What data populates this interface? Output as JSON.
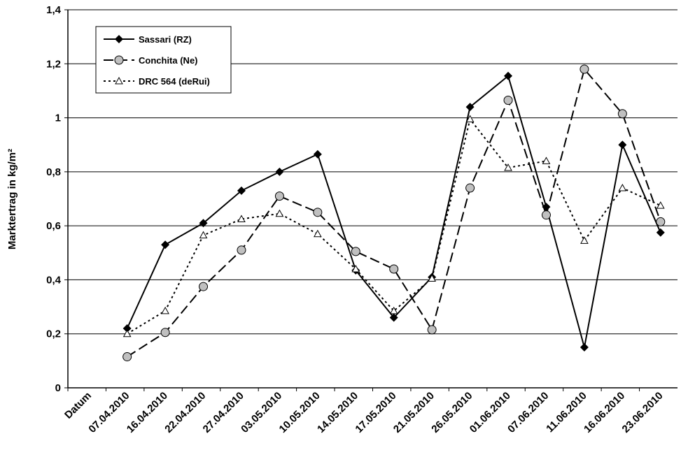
{
  "chart_data": {
    "type": "line",
    "y_label": "Marktertrag in kg/m²",
    "categories": [
      "Datum",
      "07.04.2010",
      "16.04.2010",
      "22.04.2010",
      "27.04.2010",
      "03.05.2010",
      "10.05.2010",
      "14.05.2010",
      "17.05.2010",
      "21.05.2010",
      "26.05.2010",
      "01.06.2010",
      "07.06.2010",
      "11.06.2010",
      "16.06.2010",
      "23.06.2010"
    ],
    "series": [
      {
        "name": "Sassari (RZ)",
        "color": "#000000",
        "dash": "solid",
        "marker": "diamond",
        "values": [
          null,
          0.22,
          0.53,
          0.61,
          0.73,
          0.8,
          0.865,
          0.435,
          0.26,
          0.41,
          1.04,
          1.155,
          0.67,
          0.15,
          0.9,
          0.575
        ]
      },
      {
        "name": "Conchita (Ne)",
        "color": "#000000",
        "dash": "dashed",
        "marker": "circle",
        "values": [
          null,
          0.115,
          0.205,
          0.375,
          0.51,
          0.71,
          0.65,
          0.505,
          0.44,
          0.215,
          0.74,
          1.065,
          0.64,
          1.18,
          1.015,
          0.615
        ]
      },
      {
        "name": "DRC 564 (deRui)",
        "color": "#000000",
        "dash": "dotted",
        "marker": "triangle",
        "values": [
          null,
          0.2,
          0.285,
          0.565,
          0.625,
          0.645,
          0.57,
          0.44,
          0.285,
          0.405,
          0.995,
          0.815,
          0.84,
          0.545,
          0.74,
          0.675
        ]
      }
    ],
    "ylim": [
      0,
      1.4
    ],
    "yticks": [
      0,
      {
        "value": 0.2,
        "label": "0,2"
      },
      {
        "value": 0.4,
        "label": "0,4"
      },
      {
        "value": 0.6,
        "label": "0,6"
      },
      {
        "value": 0.8,
        "label": "0,8"
      },
      1,
      {
        "value": 1.2,
        "label": "1,2"
      },
      {
        "value": 1.4,
        "label": "1,4"
      }
    ],
    "grid": true,
    "legend": "upper left"
  }
}
